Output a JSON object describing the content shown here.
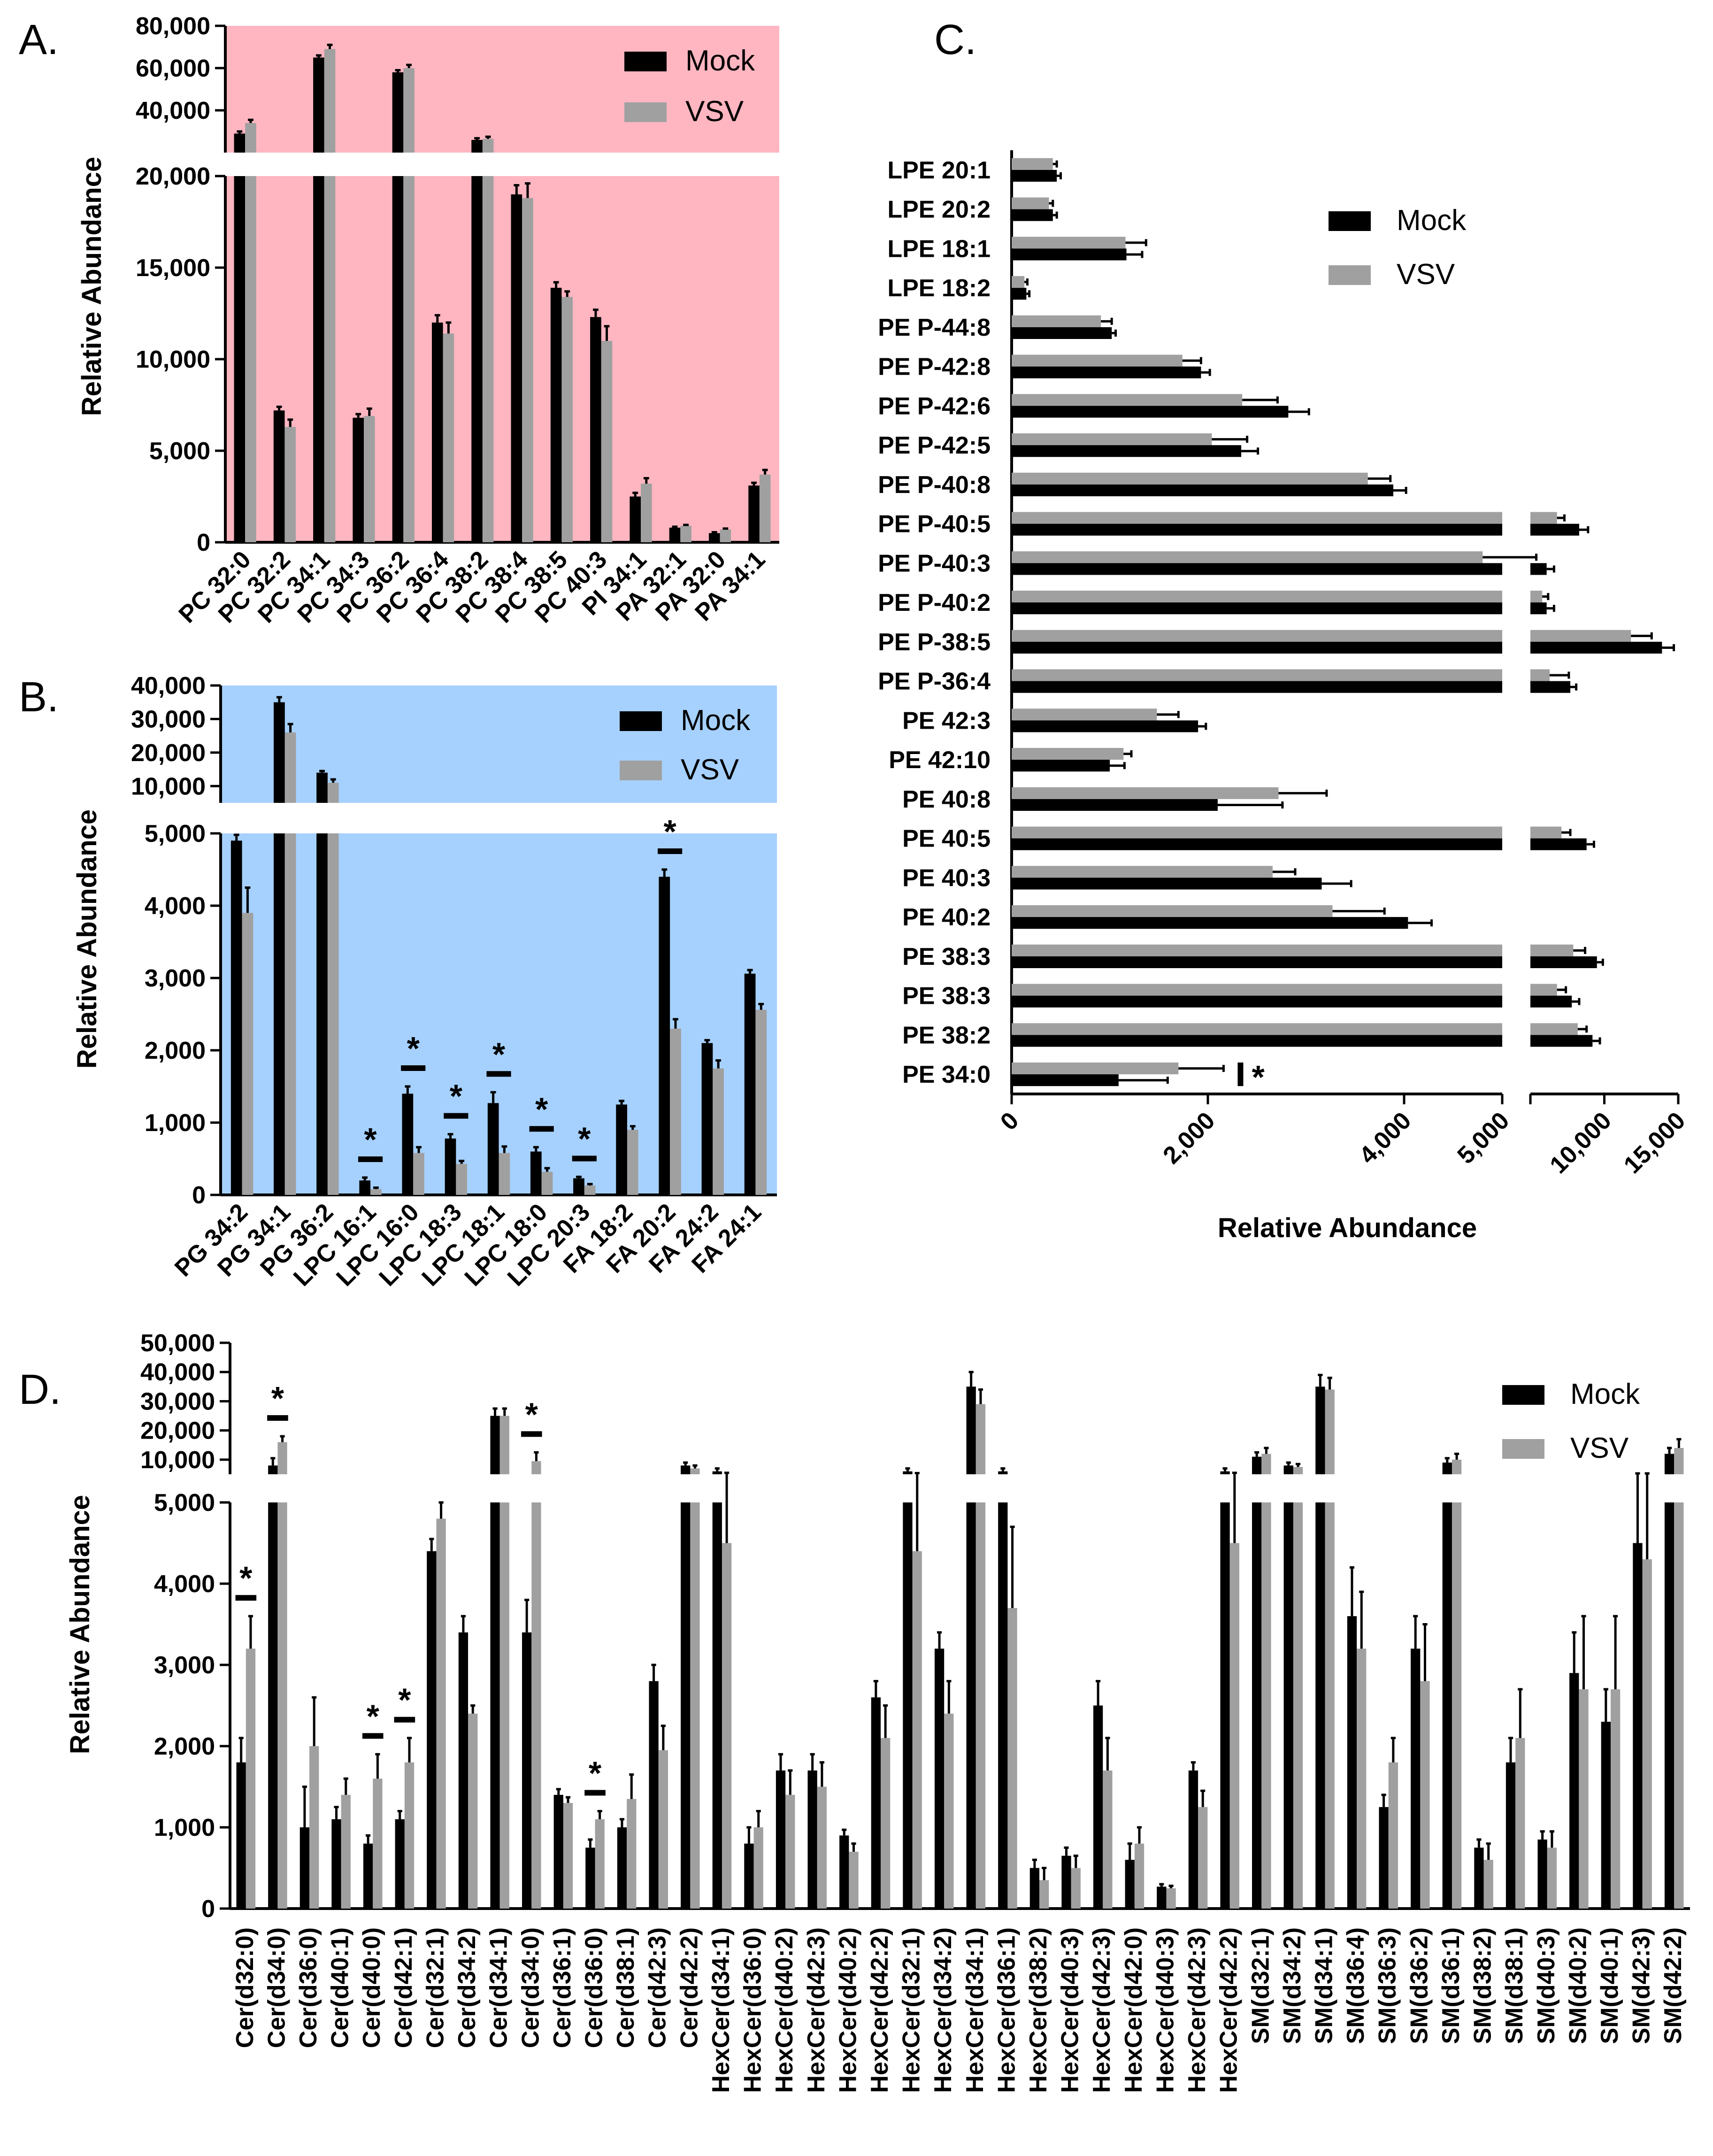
{
  "colors": {
    "mock": "#000000",
    "vsv": "#a0a0a0",
    "panelA_bg": "#ffb6c1",
    "panelB_bg": "#a6d1ff",
    "axis": "#000000"
  },
  "panels": {
    "A": {
      "letter": "A.",
      "ylabel": "Relative Abundance",
      "legend": [
        "Mock",
        "VSV"
      ],
      "yticks_upper": [
        "80,000",
        "60,000",
        "40,000",
        "20,000"
      ],
      "yticks_lower": [
        "20,000",
        "15,000",
        "10,000",
        "5,000",
        "0"
      ],
      "categories": [
        "PC 32:0",
        "PC 32:2",
        "PC 34:1",
        "PC 34:3",
        "PC 36:2",
        "PC 36:4",
        "PC 38:2",
        "PC 38:4",
        "PC 38:5",
        "PC 40:3",
        "PI 34:1",
        "PA 32:1",
        "PA 32:0",
        "PA 34:1"
      ],
      "mock": [
        29000,
        7200,
        65000,
        6800,
        58000,
        12000,
        26000,
        19000,
        13900,
        12300,
        2500,
        800,
        500,
        3100
      ],
      "mock_err": [
        1000,
        200,
        1000,
        200,
        1000,
        400,
        800,
        500,
        300,
        400,
        200,
        50,
        50,
        150
      ],
      "vsv": [
        34000,
        6300,
        69000,
        6900,
        60000,
        11400,
        26500,
        18800,
        13400,
        11000,
        3200,
        900,
        700,
        3700
      ],
      "vsv_err": [
        1500,
        400,
        2000,
        400,
        1500,
        600,
        1000,
        800,
        300,
        800,
        300,
        50,
        50,
        250
      ]
    },
    "B": {
      "letter": "B.",
      "ylabel": "Relative Abundance",
      "legend": [
        "Mock",
        "VSV"
      ],
      "yticks_upper": [
        "40,000",
        "30,000",
        "20,000",
        "10,000"
      ],
      "yticks_lower": [
        "5,000",
        "4,000",
        "3,000",
        "2,000",
        "1,000",
        "0"
      ],
      "categories": [
        "PG 34:2",
        "PG 34:1",
        "PG 36:2",
        "LPC 16:1",
        "LPC 16:0",
        "LPC 18:3",
        "LPC 18:1",
        "LPC 18:0",
        "LPC 20:3",
        "FA 18:2",
        "FA 20:2",
        "FA 24:2",
        "FA 24:1"
      ],
      "mock": [
        4900,
        35000,
        14000,
        200,
        1400,
        780,
        1270,
        600,
        230,
        1250,
        4400,
        2100,
        3060
      ],
      "mock_err": [
        80,
        1500,
        500,
        40,
        100,
        60,
        150,
        60,
        20,
        50,
        100,
        40,
        50
      ],
      "vsv": [
        3900,
        26000,
        11000,
        80,
        580,
        430,
        580,
        320,
        130,
        900,
        2300,
        1750,
        2560
      ],
      "vsv_err": [
        350,
        2500,
        1000,
        20,
        80,
        40,
        90,
        50,
        20,
        50,
        130,
        110,
        80
      ],
      "significant": [
        false,
        false,
        false,
        true,
        true,
        true,
        true,
        true,
        true,
        false,
        true,
        false,
        false
      ],
      "star_symbol": "*"
    },
    "C": {
      "letter": "C.",
      "xlabel": "Relative Abundance",
      "legend": [
        "Mock",
        "VSV"
      ],
      "xticks_lower": [
        "0",
        "2,000",
        "4,000",
        "5,000"
      ],
      "xticks_upper": [
        "10,000",
        "15,000"
      ],
      "categories": [
        "LPE 20:1",
        "LPE 20:2",
        "LPE 18:1",
        "LPE 18:2",
        "PE P-44:8",
        "PE P-42:8",
        "PE P-42:6",
        "PE P-42:5",
        "PE P-40:8",
        "PE P-40:5",
        "PE P-40:3",
        "PE P-40:2",
        "PE P-38:5",
        "PE P-36:4",
        "PE 42:3",
        "PE 42:10",
        "PE 40:8",
        "PE 40:5",
        "PE 40:3",
        "PE 40:2",
        "PE 38:3",
        "PE 38:3",
        "PE 38:2",
        "PE 34:0"
      ],
      "mock": [
        460,
        420,
        1170,
        150,
        1020,
        1930,
        2820,
        2340,
        3890,
        8300,
        6100,
        6100,
        13900,
        7700,
        1900,
        1000,
        2100,
        8800,
        3160,
        4040,
        9500,
        7800,
        9200,
        1090
      ],
      "mock_err": [
        40,
        40,
        160,
        30,
        40,
        90,
        210,
        170,
        130,
        600,
        500,
        500,
        800,
        400,
        80,
        150,
        660,
        500,
        300,
        240,
        400,
        500,
        500,
        500
      ],
      "vsv": [
        420,
        380,
        1160,
        130,
        910,
        1740,
        2350,
        2040,
        3630,
        6800,
        4800,
        5800,
        11800,
        6300,
        1480,
        1140,
        2720,
        7100,
        2660,
        3270,
        7900,
        6800,
        8200,
        1700
      ],
      "vsv_err": [
        40,
        40,
        210,
        30,
        110,
        190,
        360,
        360,
        230,
        500,
        600,
        400,
        1400,
        1300,
        220,
        80,
        490,
        600,
        230,
        530,
        800,
        600,
        600,
        460
      ],
      "significant_index": 23,
      "star_symbol": "*"
    },
    "D": {
      "letter": "D.",
      "ylabel": "Relative Abundance",
      "legend": [
        "Mock",
        "VSV"
      ],
      "yticks_upper": [
        "50,000",
        "40,000",
        "30,000",
        "20,000",
        "10,000"
      ],
      "yticks_lower": [
        "5,000",
        "4,000",
        "3,000",
        "2,000",
        "1,000",
        "0"
      ],
      "categories": [
        "Cer(d32:0)",
        "Cer(d34:0)",
        "Cer(d36:0)",
        "Cer(d40:1)",
        "Cer(d40:0)",
        "Cer(d42:1)",
        "Cer(d32:1)",
        "Cer(d34:2)",
        "Cer(d34:1)",
        "Cer(d34:0)",
        "Cer(d36:1)",
        "Cer(d36:0)",
        "Cer(d38:1)",
        "Cer(d42:3)",
        "Cer(d42:2)",
        "HexCer(d34:1)",
        "HexCer(d36:0)",
        "HexCer(d40:2)",
        "HexCer(d42:3)",
        "HexCer(d40:2)",
        "HexCer(d42:2)",
        "HexCer(d32:1)",
        "HexCer(d34:2)",
        "HexCer(d34:1)",
        "HexCer(d36:1)",
        "HexCer(d38:2)",
        "HexCer(d40:3)",
        "HexCer(d42:3)",
        "HexCer(d42:0)",
        "HexCer(d40:3)",
        "HexCer(d42:3)",
        "HexCer(d42:2)",
        "SM(d32:1)",
        "SM(d34:2)",
        "SM(d34:1)",
        "SM(d36:4)",
        "SM(d36:3)",
        "SM(d36:2)",
        "SM(d36:1)",
        "SM(d38:2)",
        "SM(d38:1)",
        "SM(d40:3)",
        "SM(d40:2)",
        "SM(d40:1)",
        "SM(d42:3)",
        "SM(d42:2)"
      ],
      "mock": [
        1800,
        8000,
        1000,
        1100,
        800,
        1100,
        4400,
        3400,
        25000,
        3400,
        1400,
        750,
        1000,
        2800,
        8000,
        6000,
        800,
        1700,
        1700,
        900,
        2600,
        6000,
        3200,
        35000,
        6000,
        500,
        650,
        2500,
        600,
        270,
        1700,
        6000,
        11000,
        8000,
        35000,
        3600,
        1250,
        3200,
        9000,
        750,
        1800,
        850,
        2900,
        2300,
        4500,
        12000
      ],
      "mock_err": [
        300,
        2500,
        500,
        150,
        100,
        100,
        150,
        200,
        2500,
        400,
        70,
        100,
        100,
        200,
        1000,
        1000,
        200,
        200,
        200,
        70,
        200,
        1000,
        200,
        5000,
        1000,
        100,
        100,
        300,
        200,
        30,
        100,
        1000,
        1500,
        1000,
        4000,
        600,
        150,
        400,
        1500,
        100,
        300,
        100,
        500,
        400,
        800,
        2000
      ],
      "vsv": [
        3200,
        16000,
        2000,
        1400,
        1600,
        1800,
        4800,
        2400,
        25000,
        9500,
        1300,
        1100,
        1350,
        1950,
        7000,
        4500,
        1000,
        1400,
        1500,
        700,
        2100,
        4400,
        2400,
        29000,
        3700,
        350,
        500,
        1700,
        800,
        250,
        1250,
        4500,
        12000,
        7500,
        34000,
        3200,
        1800,
        2800,
        10000,
        600,
        2100,
        750,
        2700,
        2700,
        4300,
        14000
      ],
      "vsv_err": [
        400,
        2000,
        600,
        200,
        300,
        300,
        200,
        100,
        2500,
        3000,
        70,
        100,
        300,
        300,
        1000,
        1000,
        200,
        300,
        300,
        100,
        400,
        1000,
        400,
        5000,
        1000,
        150,
        150,
        400,
        200,
        30,
        200,
        1000,
        2000,
        1000,
        4000,
        700,
        300,
        700,
        2000,
        200,
        600,
        200,
        900,
        900,
        1000,
        3000
      ],
      "significant": [
        true,
        true,
        false,
        false,
        true,
        true,
        false,
        false,
        false,
        true,
        false,
        true,
        false,
        false,
        false,
        false,
        false,
        false,
        false,
        false,
        false,
        false,
        false,
        false,
        false,
        false,
        false,
        false,
        false,
        false,
        false,
        false,
        false,
        false,
        false,
        false,
        false,
        false,
        false,
        false,
        false,
        false,
        false,
        false,
        false,
        false
      ],
      "star_symbol": "*"
    }
  }
}
